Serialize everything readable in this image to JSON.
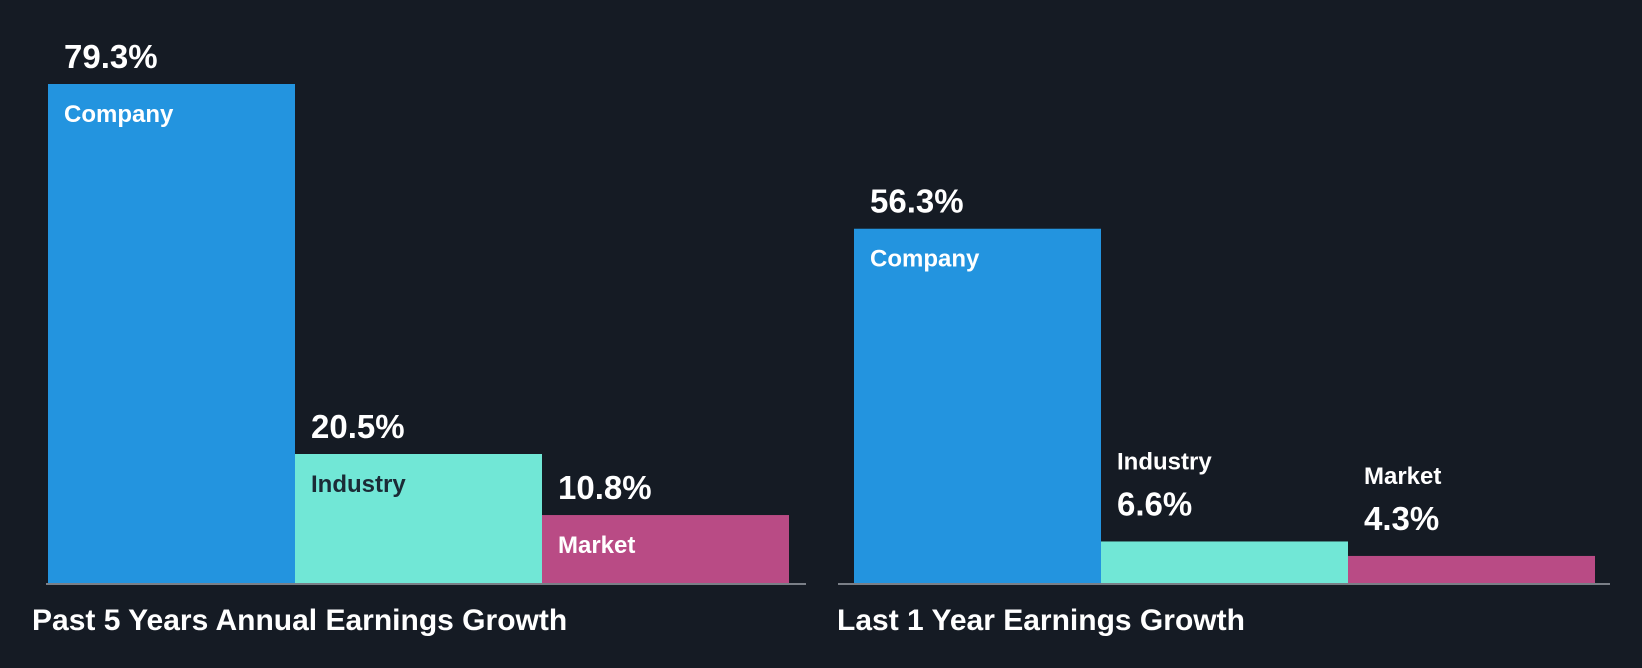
{
  "colors": {
    "background": "#151b24",
    "company": "#2394df",
    "industry": "#71e7d6",
    "market": "#b94b85",
    "axis": "#7a7f87",
    "value_text": "#ffffff",
    "label_on_light": "#1b2b36",
    "label_on_dark": "#ffffff"
  },
  "chart_data": [
    {
      "type": "bar",
      "title": "Past 5 Years Annual Earnings Growth",
      "categories": [
        "Company",
        "Industry",
        "Market"
      ],
      "values": [
        79.3,
        20.5,
        10.8
      ],
      "value_labels": [
        "79.3%",
        "20.5%",
        "10.8%"
      ],
      "unit": "%",
      "ylim": [
        0,
        79.3
      ],
      "grid": false,
      "legend": "none"
    },
    {
      "type": "bar",
      "title": "Last 1 Year Earnings Growth",
      "categories": [
        "Company",
        "Industry",
        "Market"
      ],
      "values": [
        56.3,
        6.6,
        4.3
      ],
      "value_labels": [
        "56.3%",
        "6.6%",
        "4.3%"
      ],
      "unit": "%",
      "ylim": [
        0,
        79.3
      ],
      "grid": false,
      "legend": "none"
    }
  ]
}
